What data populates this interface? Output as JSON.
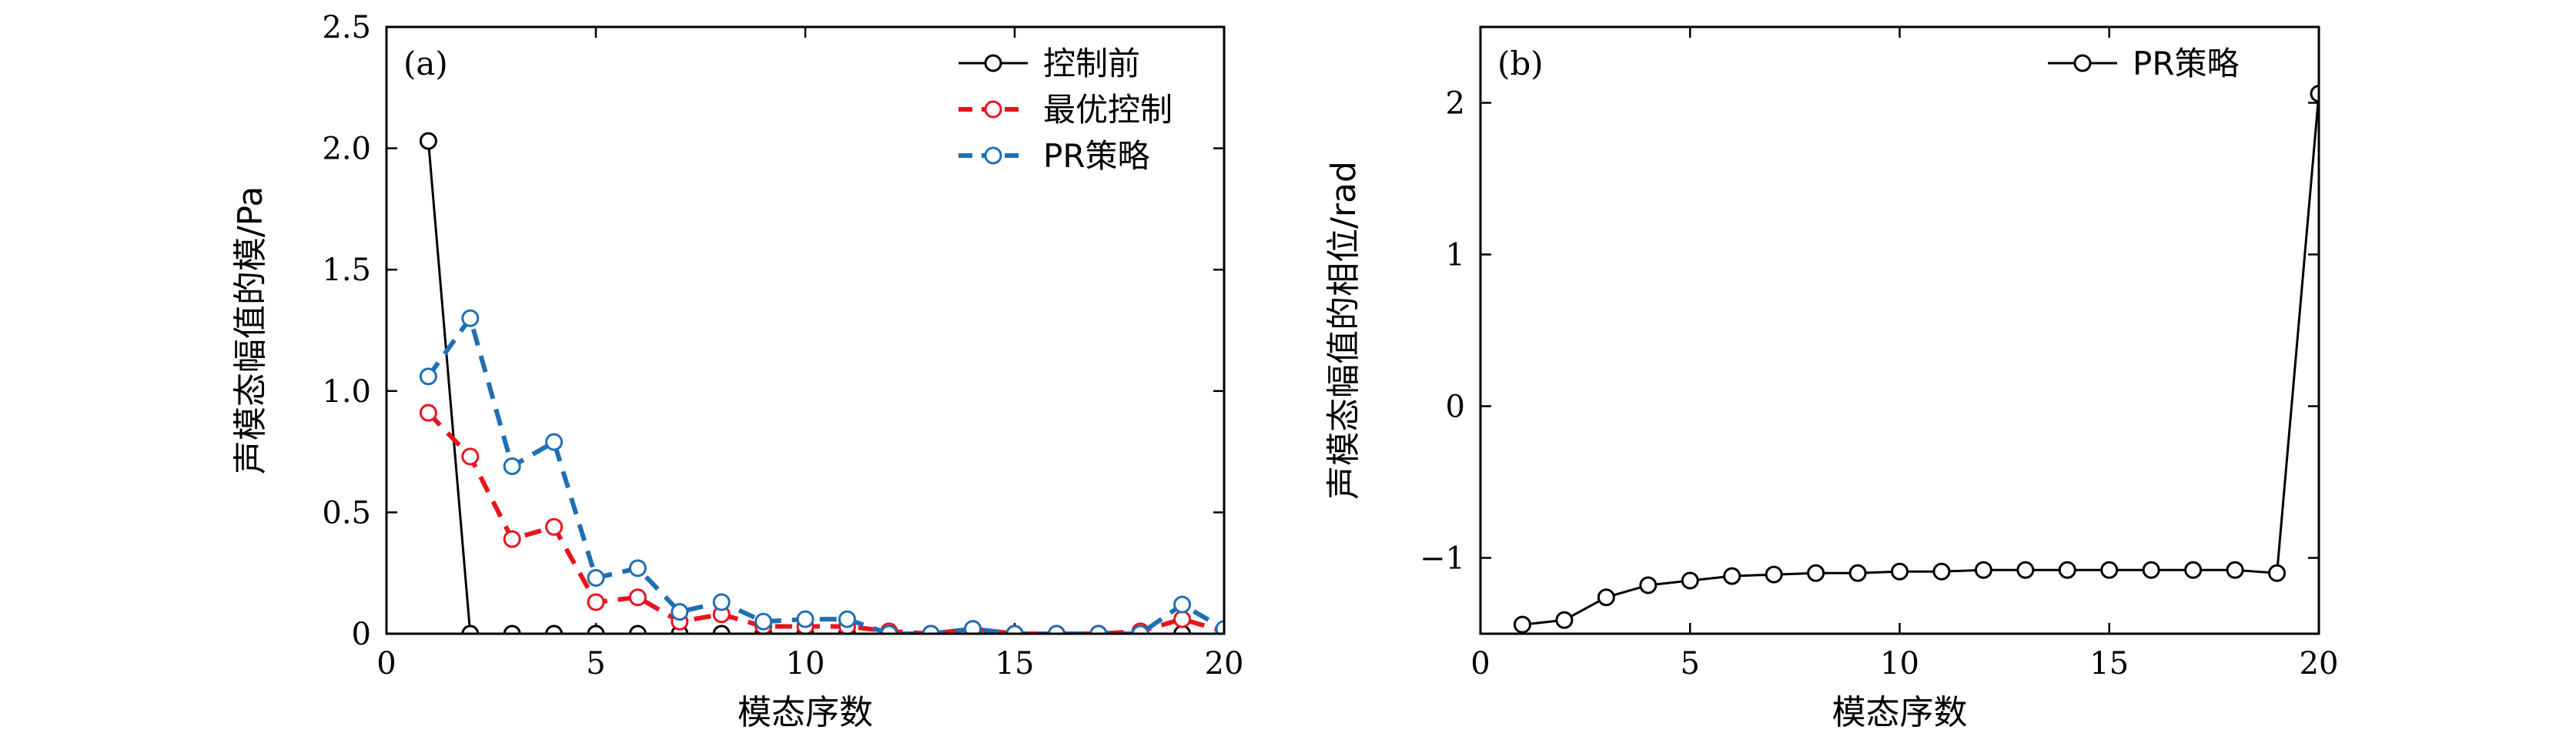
{
  "chart_data": [
    {
      "type": "line",
      "panel_label": "(a)",
      "xlabel": "模态序数",
      "ylabel": "声模态幅值的模/Pa",
      "xlim": [
        0,
        20
      ],
      "ylim": [
        0,
        2.5
      ],
      "xticks": [
        0,
        5,
        10,
        15,
        20
      ],
      "yticks": [
        0,
        0.5,
        1.0,
        1.5,
        2.0,
        2.5
      ],
      "ytick_labels": [
        "0",
        "0.5",
        "1.0",
        "1.5",
        "2.0",
        "2.5"
      ],
      "legend_position": "top-right",
      "x": [
        1,
        2,
        3,
        4,
        5,
        6,
        7,
        8,
        9,
        10,
        11,
        12,
        13,
        14,
        15,
        16,
        17,
        18,
        19,
        20
      ],
      "series": [
        {
          "name": "控制前",
          "color": "#000000",
          "style": "solid",
          "values": [
            2.03,
            0.0,
            0.0,
            0.0,
            0.0,
            0.0,
            0.0,
            0.0,
            0.0,
            0.0,
            0.0,
            0.0,
            0.0,
            0.0,
            0.0,
            0.0,
            0.0,
            0.0,
            0.0,
            0.0
          ]
        },
        {
          "name": "最优控制",
          "color": "#e8141c",
          "style": "dashed",
          "values": [
            0.91,
            0.73,
            0.39,
            0.44,
            0.13,
            0.15,
            0.05,
            0.08,
            0.03,
            0.03,
            0.03,
            0.01,
            0.0,
            0.02,
            0.0,
            0.0,
            0.0,
            0.01,
            0.06,
            0.01
          ]
        },
        {
          "name": "PR策略",
          "color": "#1f6fb4",
          "style": "dashed",
          "values": [
            1.06,
            1.3,
            0.69,
            0.79,
            0.23,
            0.27,
            0.09,
            0.13,
            0.05,
            0.06,
            0.06,
            0.0,
            0.0,
            0.02,
            0.0,
            0.0,
            0.0,
            0.0,
            0.12,
            0.02
          ]
        }
      ]
    },
    {
      "type": "line",
      "panel_label": "(b)",
      "xlabel": "模态序数",
      "ylabel": "声模态幅值的相位/rad",
      "xlim": [
        0,
        20
      ],
      "ylim": [
        -1.5,
        2.5
      ],
      "xticks": [
        0,
        5,
        10,
        15,
        20
      ],
      "yticks": [
        -1,
        0,
        1,
        2
      ],
      "ytick_labels": [
        "−1",
        "0",
        "1",
        "2"
      ],
      "legend_position": "top-right",
      "x": [
        1,
        2,
        3,
        4,
        5,
        6,
        7,
        8,
        9,
        10,
        11,
        12,
        13,
        14,
        15,
        16,
        17,
        18,
        19,
        20
      ],
      "series": [
        {
          "name": "PR策略",
          "color": "#000000",
          "style": "solid",
          "values": [
            -1.44,
            -1.41,
            -1.26,
            -1.18,
            -1.15,
            -1.12,
            -1.11,
            -1.1,
            -1.1,
            -1.09,
            -1.09,
            -1.08,
            -1.08,
            -1.08,
            -1.08,
            -1.08,
            -1.08,
            -1.08,
            -1.1,
            2.06
          ]
        }
      ]
    }
  ]
}
